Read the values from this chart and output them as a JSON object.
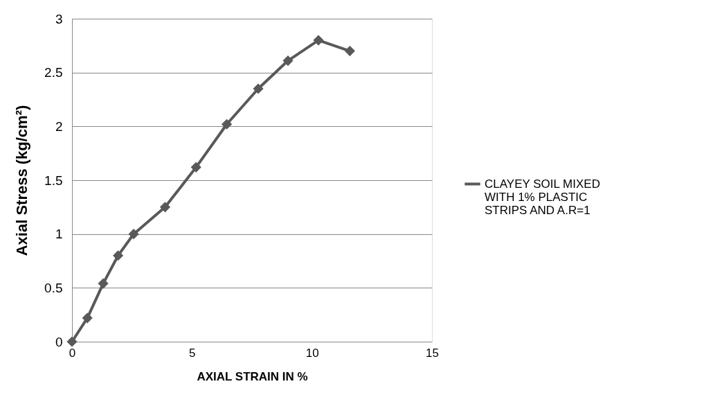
{
  "chart_data": {
    "type": "line",
    "xlabel": "AXIAL STRAIN IN %",
    "ylabel": "Axial Stress (kg/cm²)",
    "x": [
      0,
      0.64,
      1.3,
      1.92,
      2.57,
      3.88,
      5.17,
      6.45,
      7.76,
      9.0,
      10.27,
      11.58
    ],
    "series": [
      {
        "name": "CLAYEY SOIL MIXED WITH 1% PLASTIC STRIPS AND A.R=1",
        "color": "#595959",
        "values": [
          0,
          0.22,
          0.54,
          0.8,
          1.0,
          1.25,
          1.62,
          2.02,
          2.35,
          2.61,
          2.8,
          2.7
        ]
      }
    ],
    "xlim": [
      0,
      15
    ],
    "xticks": [
      0,
      5,
      10,
      15
    ],
    "ylim": [
      0,
      3
    ],
    "yticks": [
      0,
      0.5,
      1,
      1.5,
      2,
      2.5,
      3
    ],
    "grid": "y",
    "legend": "right",
    "marker": "diamond",
    "line_style": "solid"
  }
}
